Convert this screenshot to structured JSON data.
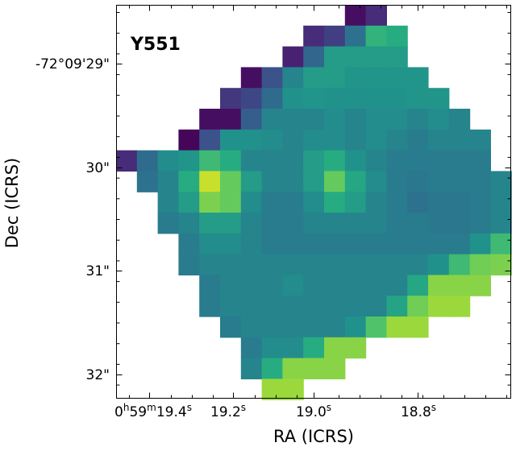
{
  "chart_data": {
    "type": "heatmap",
    "title": "",
    "annotation": "Y551",
    "xlabel": "RA (ICRS)",
    "ylabel": "Dec (ICRS)",
    "x_ticks": [
      {
        "h": "0",
        "m": "59",
        "s": "19.4",
        "frac": "s"
      },
      {
        "h": "",
        "m": "",
        "s": "19.2",
        "frac": "s"
      },
      {
        "h": "",
        "m": "",
        "s": "19.0",
        "frac": "s"
      },
      {
        "h": "",
        "m": "",
        "s": "18.8",
        "frac": "s"
      }
    ],
    "y_ticks": [
      "-72°09'29\"",
      "30\"",
      "31\"",
      "32\""
    ],
    "grid": false,
    "colormap": "viridis",
    "value_range": [
      0,
      1
    ],
    "rows": [
      [
        null,
        null,
        null,
        null,
        null,
        null,
        null,
        null,
        null,
        null,
        null,
        0.05,
        0.15,
        null,
        null,
        null,
        null,
        null,
        null
      ],
      [
        null,
        null,
        null,
        null,
        null,
        null,
        null,
        null,
        null,
        0.15,
        0.2,
        0.38,
        0.65,
        0.62,
        null,
        null,
        null,
        null,
        null
      ],
      [
        null,
        null,
        null,
        null,
        null,
        null,
        null,
        null,
        0.12,
        0.33,
        0.55,
        0.55,
        0.55,
        0.55,
        null,
        null,
        null,
        null,
        null
      ],
      [
        null,
        null,
        null,
        null,
        null,
        null,
        0.05,
        0.25,
        0.45,
        0.55,
        0.55,
        0.52,
        0.52,
        0.52,
        0.52,
        null,
        null,
        null,
        null
      ],
      [
        null,
        null,
        null,
        null,
        null,
        0.18,
        0.22,
        0.35,
        0.5,
        0.52,
        0.5,
        0.5,
        0.5,
        0.5,
        0.52,
        0.52,
        null,
        null,
        null
      ],
      [
        null,
        null,
        null,
        null,
        0.05,
        0.05,
        0.3,
        0.45,
        0.45,
        0.45,
        0.48,
        0.45,
        0.48,
        0.48,
        0.45,
        0.48,
        0.45,
        null,
        null
      ],
      [
        null,
        null,
        null,
        0.02,
        0.25,
        0.5,
        0.5,
        0.48,
        0.45,
        0.48,
        0.48,
        0.45,
        0.48,
        0.45,
        0.42,
        0.45,
        0.45,
        0.45,
        null
      ],
      [
        0.15,
        0.35,
        0.48,
        0.52,
        0.68,
        0.62,
        0.45,
        0.45,
        0.45,
        0.55,
        0.62,
        0.5,
        0.45,
        0.42,
        0.42,
        0.42,
        0.42,
        0.42,
        null
      ],
      [
        null,
        0.38,
        0.45,
        0.62,
        0.92,
        0.76,
        0.55,
        0.45,
        0.45,
        0.55,
        0.76,
        0.6,
        0.48,
        0.42,
        0.4,
        0.42,
        0.42,
        0.42,
        0.45
      ],
      [
        null,
        null,
        0.45,
        0.55,
        0.8,
        0.76,
        0.48,
        0.42,
        0.42,
        0.48,
        0.62,
        0.55,
        0.45,
        0.42,
        0.38,
        0.4,
        0.4,
        0.42,
        0.45
      ],
      [
        null,
        null,
        0.42,
        0.45,
        0.55,
        0.55,
        0.45,
        0.42,
        0.42,
        0.45,
        0.45,
        0.45,
        0.45,
        0.42,
        0.42,
        0.4,
        0.4,
        0.42,
        0.45
      ],
      [
        null,
        null,
        null,
        0.42,
        0.48,
        0.48,
        0.45,
        0.42,
        0.42,
        0.42,
        0.42,
        0.42,
        0.42,
        0.42,
        0.42,
        0.42,
        0.42,
        0.5,
        0.68
      ],
      [
        null,
        null,
        null,
        0.42,
        0.45,
        0.45,
        0.45,
        0.45,
        0.45,
        0.45,
        0.45,
        0.45,
        0.45,
        0.45,
        0.45,
        0.5,
        0.68,
        0.78,
        0.8
      ],
      [
        null,
        null,
        null,
        null,
        0.42,
        0.45,
        0.45,
        0.45,
        0.48,
        0.45,
        0.45,
        0.45,
        0.45,
        0.45,
        0.6,
        0.82,
        0.82,
        0.82,
        null
      ],
      [
        null,
        null,
        null,
        null,
        0.42,
        0.45,
        0.45,
        0.45,
        0.45,
        0.45,
        0.45,
        0.45,
        0.45,
        0.58,
        0.78,
        0.85,
        0.85,
        null,
        null
      ],
      [
        null,
        null,
        null,
        null,
        null,
        0.42,
        0.45,
        0.45,
        0.45,
        0.45,
        0.45,
        0.5,
        0.72,
        0.85,
        0.85,
        null,
        null,
        null,
        null
      ],
      [
        null,
        null,
        null,
        null,
        null,
        null,
        0.42,
        0.48,
        0.48,
        0.62,
        0.82,
        0.82,
        null,
        null,
        null,
        null,
        null,
        null,
        null
      ],
      [
        null,
        null,
        null,
        null,
        null,
        null,
        0.45,
        0.62,
        0.82,
        0.82,
        0.82,
        null,
        null,
        null,
        null,
        null,
        null,
        null,
        null
      ],
      [
        null,
        null,
        null,
        null,
        null,
        null,
        null,
        0.85,
        0.85,
        null,
        null,
        null,
        null,
        null,
        null,
        null,
        null,
        null,
        null
      ]
    ]
  }
}
